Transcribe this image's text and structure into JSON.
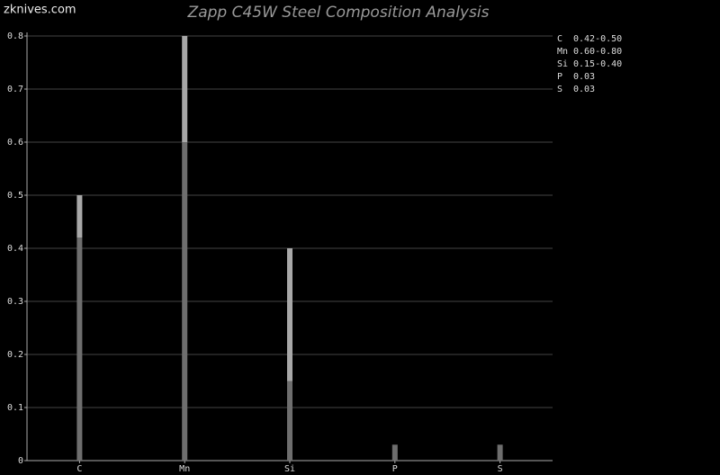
{
  "watermark": "zknives.com",
  "chart_data": {
    "type": "range-bar",
    "title": "Zapp C45W Steel Composition Analysis",
    "categories": [
      "C",
      "Mn",
      "Si",
      "P",
      "S"
    ],
    "min_values": [
      0.42,
      0.6,
      0.15,
      0.03,
      0.03
    ],
    "max_values": [
      0.5,
      0.8,
      0.4,
      0.03,
      0.03
    ],
    "min_color": "#6e6e6e",
    "max_color": "#a8a8a8",
    "ylim": [
      0,
      0.8
    ],
    "yticks": [
      0,
      0.1,
      0.2,
      0.3,
      0.4,
      0.5,
      0.6,
      0.7,
      0.8
    ],
    "grid": true,
    "legend": [
      {
        "label": "C",
        "text": "0.42-0.50"
      },
      {
        "label": "Mn",
        "text": "0.60-0.80"
      },
      {
        "label": "Si",
        "text": "0.15-0.40"
      },
      {
        "label": "P",
        "text": "0.03"
      },
      {
        "label": "S",
        "text": "0.03"
      }
    ],
    "legend_position": "right"
  }
}
